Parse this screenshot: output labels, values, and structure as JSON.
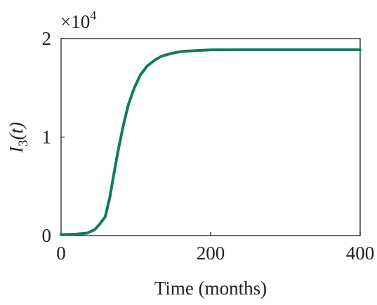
{
  "chart_data": {
    "type": "line",
    "x_label": "Time (months)",
    "y_label": {
      "symbol": "I",
      "subscript": "3",
      "argument": "(t)"
    },
    "y_multiplier": {
      "base": "×10",
      "power": "4"
    },
    "x": [
      0,
      20,
      35,
      45,
      52,
      59,
      65,
      70,
      76,
      83,
      90,
      98,
      106,
      115,
      125,
      134,
      148,
      162,
      200,
      250,
      300,
      400
    ],
    "series": [
      {
        "color": "#137a62",
        "values": [
          0.01,
          0.015,
          0.025,
          0.06,
          0.12,
          0.19,
          0.38,
          0.6,
          0.85,
          1.11,
          1.33,
          1.5,
          1.63,
          1.72,
          1.78,
          1.82,
          1.85,
          1.87,
          1.885,
          1.886,
          1.886,
          1.886
        ]
      }
    ],
    "xlim": [
      0,
      400
    ],
    "xticks": [
      0,
      200,
      400
    ],
    "ylim": [
      0,
      2
    ],
    "yticks": [
      0,
      1,
      2
    ]
  }
}
